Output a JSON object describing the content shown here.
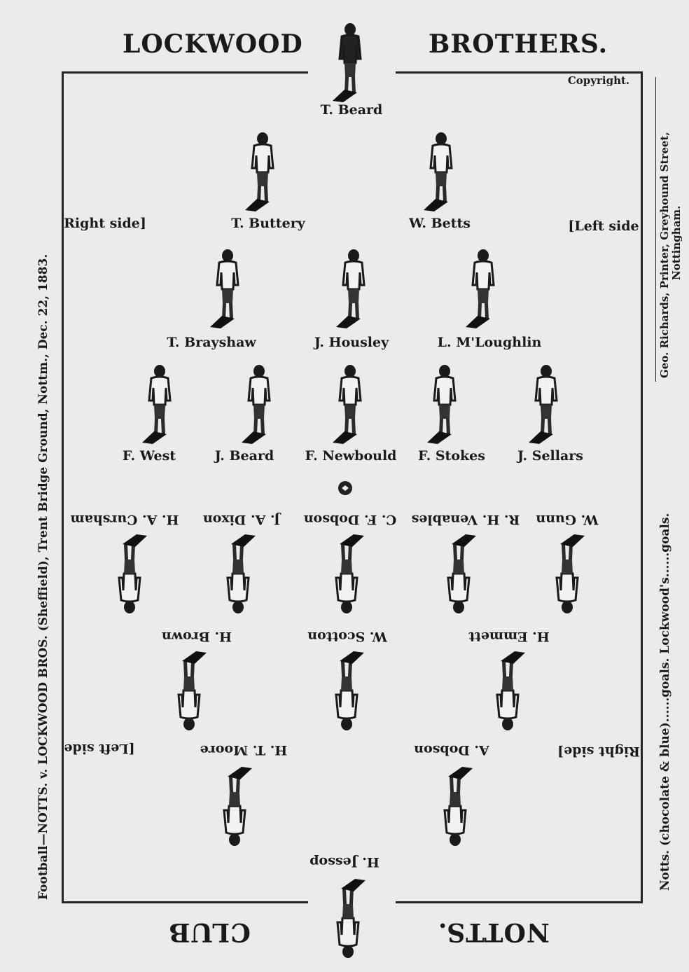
{
  "header": {
    "left": "LOCKWOOD",
    "right": "BROTHERS.",
    "copyright": "Copyright."
  },
  "footer": {
    "left": "CLUB",
    "right": "NOTTS."
  },
  "left_margin": "Football—NOTTS. v. LOCKWOOD BROS. (Sheffield), Trent Bridge Ground, Nottm., Dec. 22, 1883.",
  "right_margin": {
    "printer": "Geo. Richards, Printer, Greyhound Street,",
    "city": "Nottingham.",
    "score": "Notts. (chocolate & blue)......goals.  Lockwood's......goals."
  },
  "sides": {
    "lockwood_right": "Right side]",
    "lockwood_left": "[Left side",
    "notts_left": "[Left side",
    "notts_right": "Right side]"
  },
  "lockwood": {
    "goal": "T. Beard",
    "backs": [
      "T. Buttery",
      "W. Betts"
    ],
    "half_backs": [
      "T. Brayshaw",
      "J. Housley",
      "L. M'Loughlin"
    ],
    "forwards": [
      "F. West",
      "J. Beard",
      "F. Newbould",
      "F. Stokes",
      "J. Sellars"
    ]
  },
  "notts": {
    "forwards": [
      "W. Gunn",
      "R. H. Venables",
      "C. F. Dobson",
      "J. A. Dixon",
      "H. A. Cursham"
    ],
    "half_backs": [
      "H. Emmett",
      "W. Scotton",
      "H. Brown"
    ],
    "backs": [
      "A. Dobson",
      "H. T. Moore"
    ],
    "goal": "H. Jessop"
  }
}
